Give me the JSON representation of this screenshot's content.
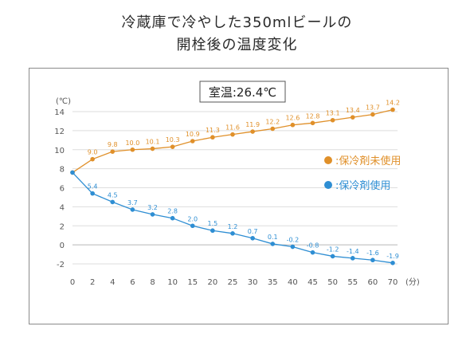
{
  "title_line1": "冷蔵庫で冷やした350mlビールの",
  "title_line2": "開栓後の温度変化",
  "chart_data": {
    "type": "line",
    "annotation": "室温:26.4℃",
    "ylabel": "(℃)",
    "xlabel": "(分)",
    "x": [
      0,
      2,
      4,
      6,
      8,
      10,
      15,
      20,
      25,
      30,
      35,
      40,
      45,
      50,
      55,
      60,
      70
    ],
    "x_tick_labels": [
      "0",
      "2",
      "4",
      "6",
      "8",
      "10",
      "15",
      "20",
      "25",
      "30",
      "35",
      "40",
      "45",
      "50",
      "55",
      "60",
      "70"
    ],
    "ylim": [
      -2,
      14
    ],
    "y_ticks": [
      -2,
      0,
      2,
      4,
      6,
      8,
      10,
      12,
      14
    ],
    "grid": true,
    "legend_position": "right",
    "series": [
      {
        "name": ":保冷剤未使用",
        "color": "#e0902a",
        "values": [
          7.6,
          9.0,
          9.8,
          10.0,
          10.1,
          10.3,
          10.9,
          11.3,
          11.6,
          11.9,
          12.2,
          12.6,
          12.8,
          13.1,
          13.4,
          13.7,
          14.2
        ],
        "labels": [
          "",
          "9.0",
          "9.8",
          "10.0",
          "10.1",
          "10.3",
          "10.9",
          "11.3",
          "11.6",
          "11.9",
          "12.2",
          "12.6",
          "12.8",
          "13.1",
          "13.4",
          "13.7",
          "14.2"
        ]
      },
      {
        "name": ":保冷剤使用",
        "color": "#2e8ed3",
        "values": [
          7.6,
          5.4,
          4.5,
          3.7,
          3.2,
          2.8,
          2.0,
          1.5,
          1.2,
          0.7,
          0.1,
          -0.2,
          -0.8,
          -1.2,
          -1.4,
          -1.6,
          -1.9
        ],
        "labels": [
          "",
          "5.4",
          "4.5",
          "3.7",
          "3.2",
          "2.8",
          "2.0",
          "1.5",
          "1.2",
          "0.7",
          "0.1",
          "-0.2",
          "-0.8",
          "-1.2",
          "-1.4",
          "-1.6",
          "-1.9"
        ]
      }
    ]
  }
}
